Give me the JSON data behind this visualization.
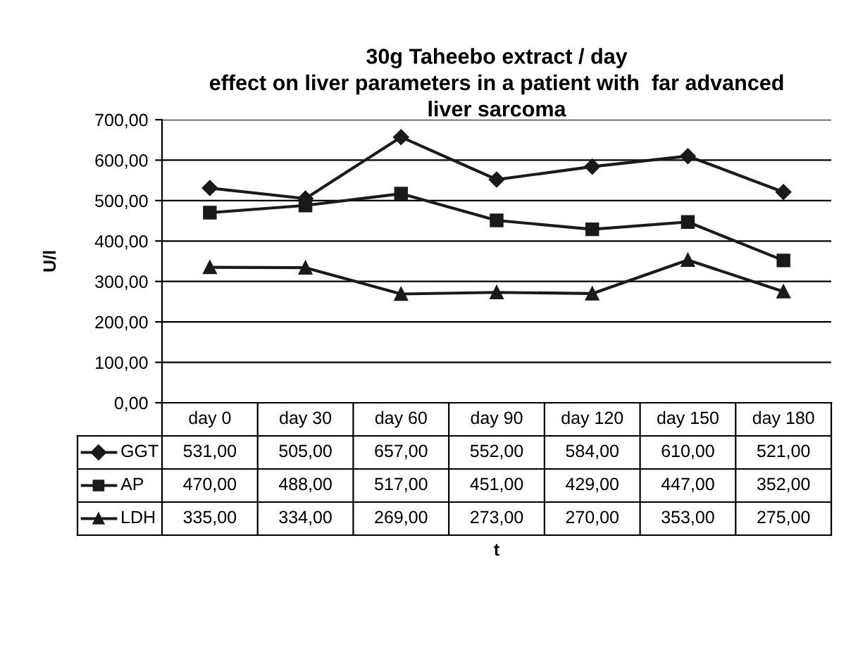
{
  "chart_data": {
    "type": "line",
    "title": "30g Taheebo extract / day\neffect on liver parameters in a patient with  far advanced\nliver sarcoma",
    "annotations": [
      "t"
    ],
    "ylabel": "U/l",
    "categories": [
      "day 0",
      "day 30",
      "day 60",
      "day 90",
      "day 120",
      "day 150",
      "day 180"
    ],
    "series": [
      {
        "name": "GGT",
        "color": "#1a1a1a",
        "marker": "diamond",
        "values": [
          531,
          505,
          657,
          552,
          584,
          610,
          521
        ],
        "value_labels": [
          "531,00",
          "505,00",
          "657,00",
          "552,00",
          "584,00",
          "610,00",
          "521,00"
        ]
      },
      {
        "name": "AP",
        "color": "#1a1a1a",
        "marker": "square",
        "values": [
          470,
          488,
          517,
          451,
          429,
          447,
          352
        ],
        "value_labels": [
          "470,00",
          "488,00",
          "517,00",
          "451,00",
          "429,00",
          "447,00",
          "352,00"
        ]
      },
      {
        "name": "LDH",
        "color": "#1a1a1a",
        "marker": "triangle",
        "values": [
          335,
          334,
          269,
          273,
          270,
          353,
          275
        ],
        "value_labels": [
          "335,00",
          "334,00",
          "269,00",
          "273,00",
          "270,00",
          "353,00",
          "275,00"
        ]
      }
    ],
    "ylim": [
      0,
      700
    ],
    "yticks": [
      {
        "value": 0,
        "label": "0,00"
      },
      {
        "value": 100,
        "label": "100,00"
      },
      {
        "value": 200,
        "label": "200,00"
      },
      {
        "value": 300,
        "label": "300,00"
      },
      {
        "value": 400,
        "label": "400,00"
      },
      {
        "value": 500,
        "label": "500,00"
      },
      {
        "value": 600,
        "label": "600,00"
      },
      {
        "value": 700,
        "label": "700,00"
      }
    ],
    "grid": "y",
    "line_style": "solid",
    "legend": "bottom left"
  }
}
